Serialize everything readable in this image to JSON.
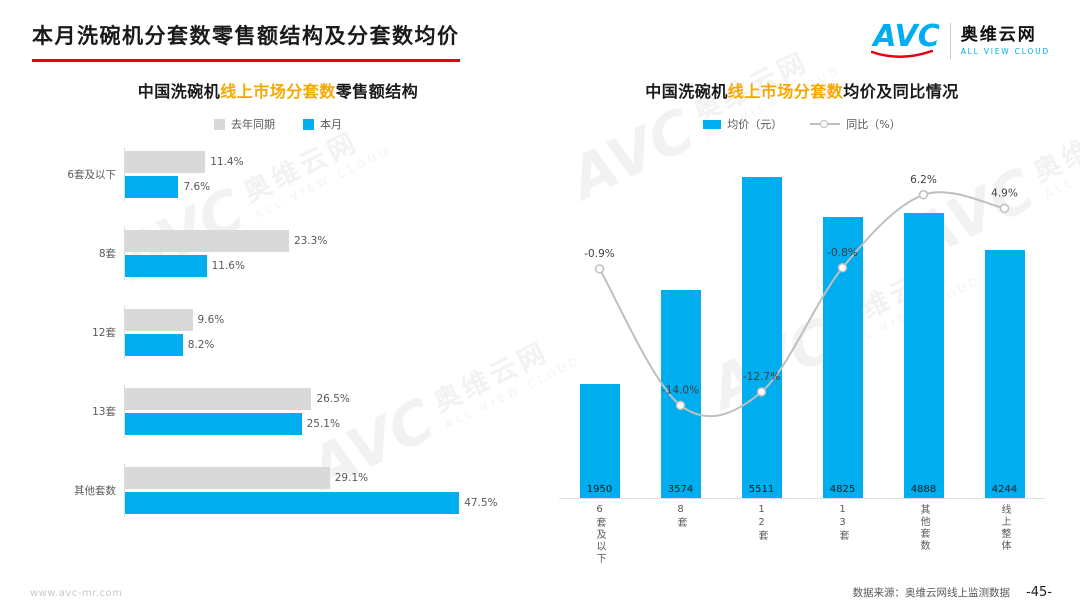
{
  "page": {
    "title": "本月洗碗机分套数零售额结构及分套数均价",
    "footer_url": "www.avc-mr.com",
    "source": "数据来源：奥维云网线上监测数据",
    "page_number": "-45-"
  },
  "logo": {
    "name": "AVC",
    "cn": "奥维云网",
    "en": "ALL VIEW CLOUD"
  },
  "watermark": {
    "name": "AVC",
    "cn": "奥维云网",
    "en": "ALL VIEW CLOUD"
  },
  "colors": {
    "brand_blue": "#00AEEF",
    "brand_red": "#E60012",
    "highlight_orange": "#F5A800",
    "bar_gray": "#D9D9D9",
    "line_gray": "#BFBFBF",
    "text_dark": "#1A1A1A",
    "text_muted": "#595959"
  },
  "chart_data": [
    {
      "type": "bar",
      "orientation": "horizontal",
      "title": "中国洗碗机线上市场分套数零售额结构",
      "title_parts": {
        "prefix": "中国洗碗机",
        "highlight": "线上市场分套数",
        "suffix": "零售额结构"
      },
      "categories": [
        "6套及以下",
        "8套",
        "12套",
        "13套",
        "其他套数"
      ],
      "series": [
        {
          "name": "去年同期",
          "color": "#D9D9D9",
          "values": [
            11.4,
            23.3,
            9.6,
            26.5,
            29.1
          ]
        },
        {
          "name": "本月",
          "color": "#00AEEF",
          "values": [
            7.6,
            11.6,
            8.2,
            25.1,
            47.5
          ]
        }
      ],
      "value_suffix": "%",
      "xlim": [
        0,
        55
      ],
      "grid": false,
      "legend_position": "top"
    },
    {
      "type": "bar",
      "subtype": "bar+line",
      "title": "中国洗碗机线上市场分套数均价及同比情况",
      "title_parts": {
        "prefix": "中国洗碗机",
        "highlight": "线上市场分套数",
        "suffix": "均价及同比情况"
      },
      "categories": [
        "6套及以下",
        "8套",
        "12套",
        "13套",
        "其他套数",
        "线上整体"
      ],
      "bar_series": {
        "name": "均价（元）",
        "color": "#00AEEF",
        "values": [
          1950,
          3574,
          5511,
          4825,
          4888,
          4244
        ]
      },
      "line_series": {
        "name": "同比（%）",
        "color": "#BFBFBF",
        "values": [
          -0.9,
          -14.0,
          -12.7,
          -0.8,
          6.2,
          4.9
        ],
        "value_suffix": "%"
      },
      "bar_ylim": [
        0,
        6000
      ],
      "line_ylim": [
        -20,
        8
      ],
      "grid": false,
      "legend_position": "top"
    }
  ]
}
